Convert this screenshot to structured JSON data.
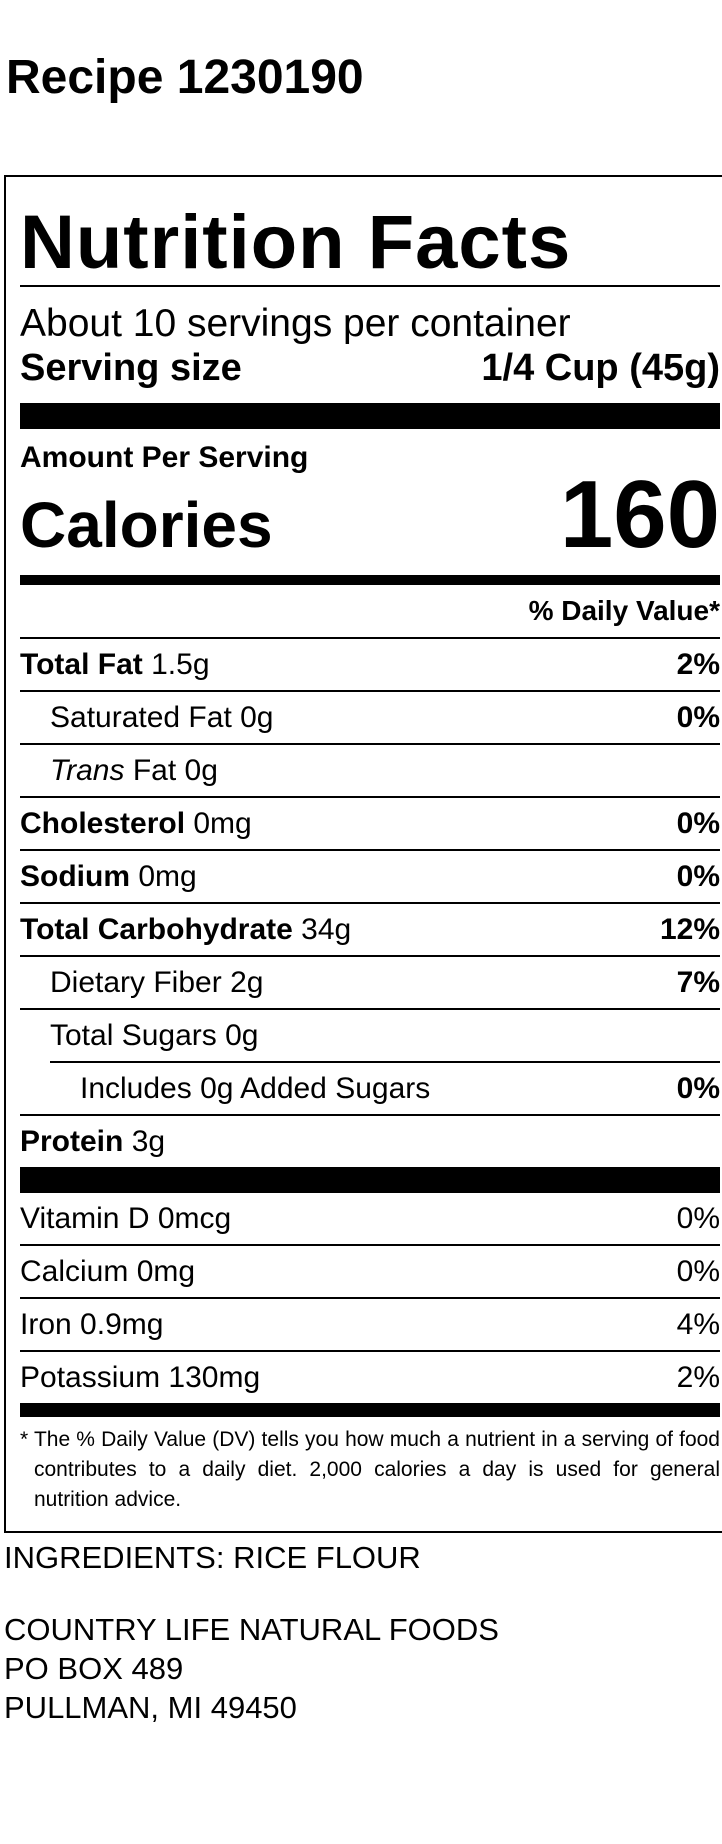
{
  "title": "Recipe 1230190",
  "label": {
    "heading": "Nutrition Facts",
    "servings": "About 10 servings per container",
    "serving_size_label": "Serving size",
    "serving_size": "1/4 Cup (45g)",
    "amount_per_serving": "Amount Per Serving",
    "calories_label": "Calories",
    "calories": "160",
    "daily_value_header": "% Daily Value*",
    "nutrients": [
      {
        "name": "Total Fat",
        "amount": "1.5g",
        "dv": "2%",
        "bold": true,
        "level": 0
      },
      {
        "name": "Saturated Fat",
        "amount": "0g",
        "dv": "0%",
        "bold": false,
        "level": 1
      },
      {
        "name_prefix": "Trans",
        "name": "Fat",
        "amount": "0g",
        "bold": false,
        "level": 1
      },
      {
        "name": "Cholesterol",
        "amount": "0mg",
        "dv": "0%",
        "bold": true,
        "level": 0
      },
      {
        "name": "Sodium",
        "amount": "0mg",
        "dv": "0%",
        "bold": true,
        "level": 0
      },
      {
        "name": "Total Carbohydrate",
        "amount": "34g",
        "dv": "12%",
        "bold": true,
        "level": 0
      },
      {
        "name": "Dietary Fiber",
        "amount": "2g",
        "dv": "7%",
        "bold": false,
        "level": 1
      },
      {
        "name": "Total Sugars",
        "amount": "0g",
        "bold": false,
        "level": 1
      },
      {
        "name": "Includes 0g Added Sugars",
        "dv": "0%",
        "bold": false,
        "level": 2
      },
      {
        "name": "Protein",
        "amount": "3g",
        "bold": true,
        "level": 0
      }
    ],
    "vitamins_minerals": [
      {
        "name": "Vitamin D",
        "amount": "0mcg",
        "dv": "0%"
      },
      {
        "name": "Calcium",
        "amount": "0mg",
        "dv": "0%"
      },
      {
        "name": "Iron",
        "amount": "0.9mg",
        "dv": "4%"
      },
      {
        "name": "Potassium",
        "amount": "130mg",
        "dv": "2%"
      }
    ],
    "footnote": "* The % Daily Value (DV) tells you how much a nutrient in a serving of food contributes to a daily diet. 2,000 calories a day is used for general nutrition advice."
  },
  "ingredients": "INGREDIENTS: RICE FLOUR",
  "address": [
    "COUNTRY LIFE NATURAL FOODS",
    "PO BOX 489",
    "PULLMAN, MI 49450"
  ]
}
